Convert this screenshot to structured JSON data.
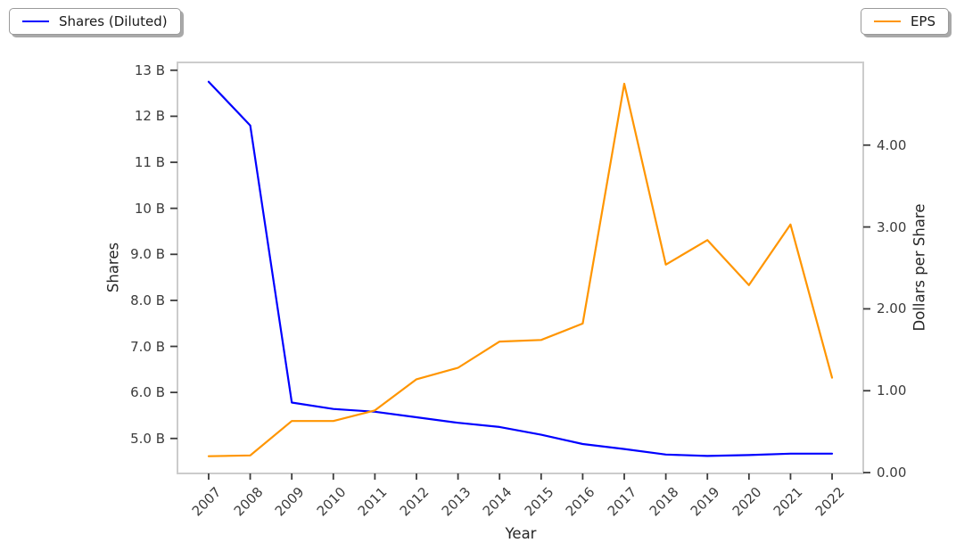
{
  "figure": {
    "background": "#ffffff",
    "legends": [
      {
        "label": "Shares (Diluted)",
        "color": "#0000ff",
        "position": "top-left"
      },
      {
        "label": "EPS",
        "color": "#ff9500",
        "position": "top-right"
      }
    ]
  },
  "chart_data": {
    "type": "line",
    "title": "",
    "xlabel": "Year",
    "ylabel_left": "Shares",
    "ylabel_right": "Dollars per Share",
    "grid": false,
    "legend_position": "outside-top, fancy boxes at top-left and top-right",
    "x": [
      2007,
      2008,
      2009,
      2010,
      2011,
      2012,
      2013,
      2014,
      2015,
      2016,
      2017,
      2018,
      2019,
      2020,
      2021,
      2022
    ],
    "series": [
      {
        "name": "Shares (Diluted)",
        "axis": "left",
        "color": "#0000ff",
        "unit": "billions of shares",
        "values": [
          12.75,
          11.8,
          5.78,
          5.64,
          5.58,
          5.46,
          5.34,
          5.25,
          5.08,
          4.88,
          4.77,
          4.65,
          4.62,
          4.64,
          4.67,
          4.67
        ]
      },
      {
        "name": "EPS",
        "axis": "right",
        "color": "#ff9500",
        "unit": "dollars per share",
        "values": [
          0.2,
          0.21,
          0.63,
          0.63,
          0.76,
          1.14,
          1.28,
          1.6,
          1.62,
          1.82,
          4.75,
          2.54,
          2.84,
          2.29,
          3.03,
          1.16
        ]
      }
    ],
    "x_axis": {
      "tick_labels": [
        "2007",
        "2008",
        "2009",
        "2010",
        "2011",
        "2012",
        "2013",
        "2014",
        "2015",
        "2016",
        "2017",
        "2018",
        "2019",
        "2020",
        "2021",
        "2022"
      ],
      "tick_values": [
        2007,
        2008,
        2009,
        2010,
        2011,
        2012,
        2013,
        2014,
        2015,
        2016,
        2017,
        2018,
        2019,
        2020,
        2021,
        2022
      ],
      "range": [
        2006.25,
        2022.75
      ],
      "label_rotation_deg": 45
    },
    "left_axis": {
      "tick_labels": [
        "5.0 B",
        "6.0 B",
        "7.0 B",
        "8.0 B",
        "9.0 B",
        "10 B",
        "11 B",
        "12 B",
        "13 B"
      ],
      "tick_values": [
        5,
        6,
        7,
        8,
        9,
        10,
        11,
        12,
        13
      ],
      "range": [
        4.24,
        13.17
      ]
    },
    "right_axis": {
      "tick_labels": [
        "0.00",
        "1.00",
        "2.00",
        "3.00",
        "4.00"
      ],
      "tick_values": [
        0,
        1,
        2,
        3,
        4
      ],
      "range": [
        -0.01,
        5.01
      ]
    },
    "style": {
      "spine_color": "#cccccc",
      "tick_mark_color": "#3c3c3c",
      "line_width": 2.2
    }
  }
}
